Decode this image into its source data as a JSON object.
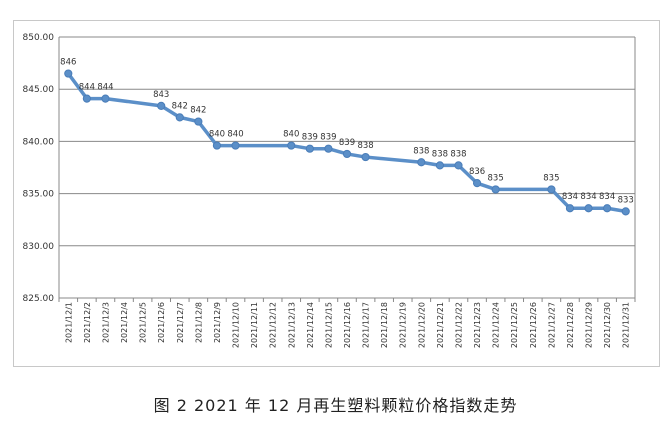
{
  "caption": "图 2  2021 年 12 月再生塑料颗粒价格指数走势",
  "chart_data": {
    "type": "line",
    "title": "",
    "xlabel": "",
    "ylabel": "",
    "ylim": [
      825,
      850
    ],
    "yticks": [
      "825.00",
      "830.00",
      "835.00",
      "840.00",
      "845.00",
      "850.00"
    ],
    "yticks_values": [
      825,
      830,
      835,
      840,
      845,
      850
    ],
    "grid": "horizontal",
    "legend": "none",
    "line_color": "#5b8fc8",
    "categories": [
      "2021/12/1",
      "2021/12/2",
      "2021/12/3",
      "2021/12/4",
      "2021/12/5",
      "2021/12/6",
      "2021/12/7",
      "2021/12/8",
      "2021/12/9",
      "2021/12/10",
      "2021/12/11",
      "2021/12/12",
      "2021/12/13",
      "2021/12/14",
      "2021/12/15",
      "2021/12/16",
      "2021/12/17",
      "2021/12/18",
      "2021/12/19",
      "2021/12/20",
      "2021/12/21",
      "2021/12/22",
      "2021/12/23",
      "2021/12/24",
      "2021/12/25",
      "2021/12/26",
      "2021/12/27",
      "2021/12/28",
      "2021/12/29",
      "2021/12/30",
      "2021/12/31"
    ],
    "points": [
      {
        "category": "2021/12/1",
        "value": 846.5,
        "label": "846"
      },
      {
        "category": "2021/12/2",
        "value": 844.1,
        "label": "844"
      },
      {
        "category": "2021/12/3",
        "value": 844.1,
        "label": "844"
      },
      {
        "category": "2021/12/6",
        "value": 843.4,
        "label": "843"
      },
      {
        "category": "2021/12/7",
        "value": 842.3,
        "label": "842"
      },
      {
        "category": "2021/12/8",
        "value": 841.9,
        "label": "842"
      },
      {
        "category": "2021/12/9",
        "value": 839.6,
        "label": "840"
      },
      {
        "category": "2021/12/10",
        "value": 839.6,
        "label": "840"
      },
      {
        "category": "2021/12/13",
        "value": 839.6,
        "label": "840"
      },
      {
        "category": "2021/12/14",
        "value": 839.3,
        "label": "839"
      },
      {
        "category": "2021/12/15",
        "value": 839.3,
        "label": "839"
      },
      {
        "category": "2021/12/16",
        "value": 838.8,
        "label": "839"
      },
      {
        "category": "2021/12/17",
        "value": 838.5,
        "label": "838"
      },
      {
        "category": "2021/12/20",
        "value": 838.0,
        "label": "838"
      },
      {
        "category": "2021/12/21",
        "value": 837.7,
        "label": "838"
      },
      {
        "category": "2021/12/22",
        "value": 837.7,
        "label": "838"
      },
      {
        "category": "2021/12/23",
        "value": 836.0,
        "label": "836"
      },
      {
        "category": "2021/12/24",
        "value": 835.4,
        "label": "835"
      },
      {
        "category": "2021/12/27",
        "value": 835.4,
        "label": "835"
      },
      {
        "category": "2021/12/28",
        "value": 833.6,
        "label": "834"
      },
      {
        "category": "2021/12/29",
        "value": 833.6,
        "label": "834"
      },
      {
        "category": "2021/12/30",
        "value": 833.6,
        "label": "834"
      },
      {
        "category": "2021/12/31",
        "value": 833.3,
        "label": "833"
      }
    ]
  }
}
